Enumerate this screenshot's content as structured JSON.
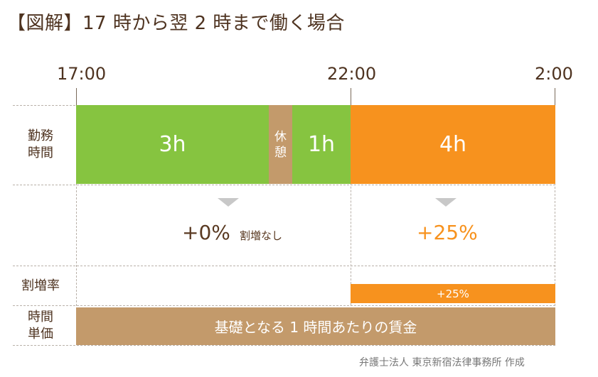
{
  "title": "【図解】17 時から翌 2 時まで働く場合",
  "timeline": {
    "t1": "17:00",
    "t2": "22:00",
    "t3": "2:00"
  },
  "rows": {
    "work": "勤務\n時間",
    "premium": "割増率",
    "unit_price": "時間\n単価"
  },
  "segments": {
    "seg1": "3h",
    "break": "休\n憩",
    "seg2": "1h",
    "seg3": "4h"
  },
  "rates": {
    "left_value": "+0%",
    "left_note": "割増なし",
    "right_value": "+25%",
    "bar_label": "+25%"
  },
  "base_wage": "基礎となる 1 時間あたりの賃金",
  "credit": "弁護士法人 東京新宿法律事務所 作成",
  "colors": {
    "green": "#86c440",
    "orange": "#f7921e",
    "tan": "#c39a6b"
  }
}
